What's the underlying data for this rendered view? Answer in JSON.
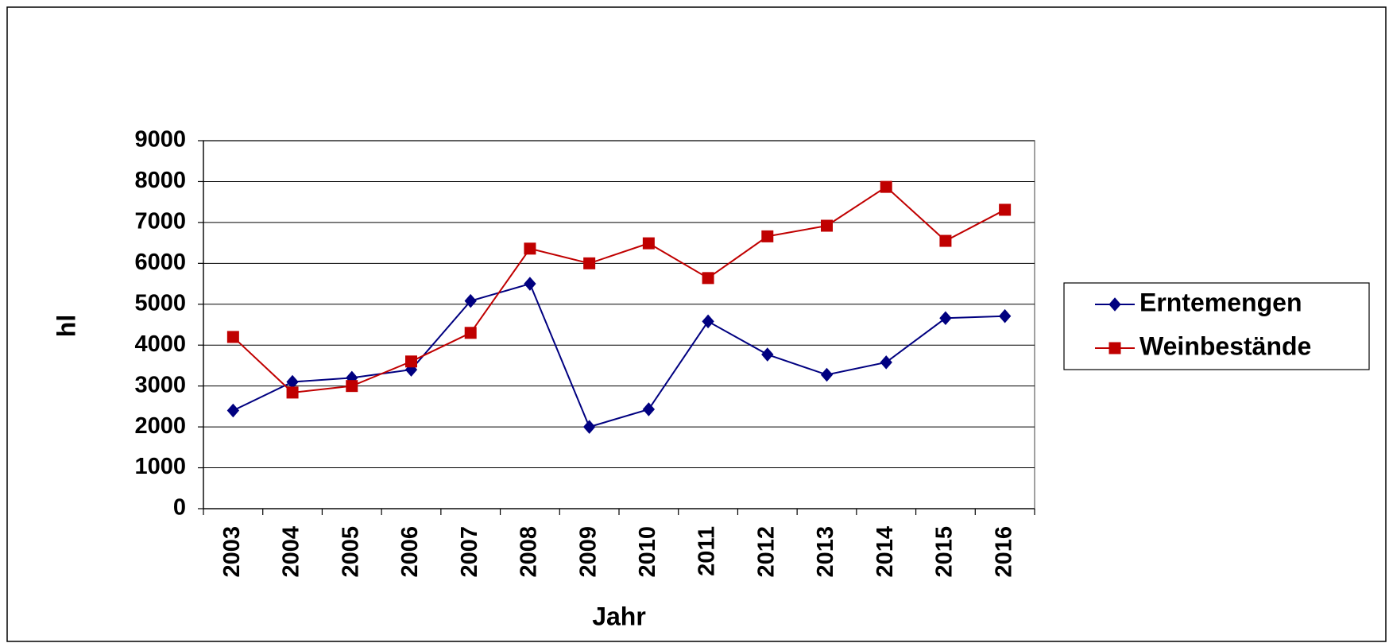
{
  "chart_data": {
    "type": "line",
    "x_label": "Jahr",
    "y_label": "hl",
    "categories": [
      "2003",
      "2004",
      "2005",
      "2006",
      "2007",
      "2008",
      "2009",
      "2010",
      "2011",
      "2012",
      "2013",
      "2014",
      "2015",
      "2016"
    ],
    "series": [
      {
        "name": "Erntemengen",
        "color": "#000080",
        "marker": "diamond",
        "values": [
          2400,
          3100,
          3200,
          3400,
          5080,
          5500,
          2000,
          2430,
          4580,
          3770,
          3275,
          3580,
          4660,
          4710
        ]
      },
      {
        "name": "Weinbestände",
        "color": "#c00000",
        "marker": "square",
        "values": [
          4200,
          2840,
          3000,
          3600,
          4300,
          6360,
          6000,
          6490,
          5640,
          6660,
          6920,
          7870,
          6550,
          7310
        ]
      }
    ],
    "ylim": [
      0,
      9000
    ],
    "yticks": [
      0,
      1000,
      2000,
      3000,
      4000,
      5000,
      6000,
      7000,
      8000,
      9000
    ],
    "grid": true,
    "legend": "right"
  }
}
